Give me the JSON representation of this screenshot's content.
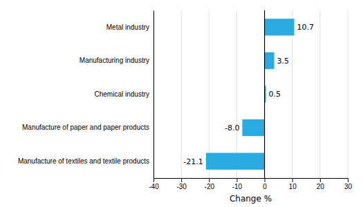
{
  "chart_data": {
    "type": "bar",
    "orientation": "horizontal",
    "categories": [
      "Manufacture of textiles and textile products",
      "Manufacture of paper and paper products",
      "Chemical industry",
      "Manufacturing industry",
      "Metal industry"
    ],
    "values": [
      -21.1,
      -8.0,
      0.5,
      3.5,
      10.7
    ],
    "value_labels": [
      "-21.1",
      "-8.0",
      "0.5",
      "3.5",
      "10.7"
    ],
    "color": "#29abe2",
    "xlabel": "Change %",
    "xlim": [
      -40,
      30
    ],
    "xticks": [
      -40,
      -30,
      -20,
      -10,
      0,
      10,
      20,
      30
    ],
    "grid": true,
    "data_labels": true
  }
}
